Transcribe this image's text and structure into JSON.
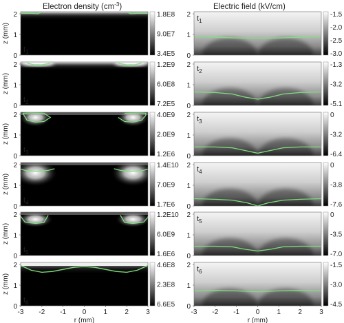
{
  "titles": {
    "left": "Electron density (cm",
    "left_sup": "-3",
    "left_end": ")",
    "right": "Electric field (kV/cm)"
  },
  "axis": {
    "z_label": "z (mm)",
    "r_label": "r (mm)",
    "z_ticks": [
      "0",
      "1",
      "2"
    ],
    "r_ticks": [
      "-3",
      "-2",
      "-1",
      "0",
      "1",
      "2",
      "3"
    ]
  },
  "chart_data": [
    {
      "type": "heatmap",
      "title": "Electron density (cm-3)",
      "xlabel": "r (mm)",
      "ylabel": "z (mm)",
      "xlim": [
        -3,
        3
      ],
      "ylim": [
        0,
        2.1
      ],
      "colormap": "grayscale",
      "contour_color": "#7de07d",
      "panels": [
        {
          "time": "t",
          "sub": "1",
          "colorbar": [
            "1.8E8",
            "9.0E7",
            "3.4E5"
          ],
          "pattern": "top-layer",
          "contours": [
            {
              "r": [
                -3,
                -2.5,
                -2.2,
                -2.0
              ],
              "z": [
                2.02,
                2.02,
                2.0,
                2.08
              ]
            },
            {
              "r": [
                2.0,
                2.2,
                2.5,
                3
              ],
              "z": [
                2.08,
                2.0,
                2.02,
                2.02
              ]
            }
          ]
        },
        {
          "time": "t",
          "sub": "2",
          "colorbar": [
            "1.2E9",
            "6.0E8",
            "7.2E5"
          ],
          "pattern": "top-edges",
          "contours": [
            {
              "r": [
                -2.7,
                -2.4,
                -2.0,
                -1.6
              ],
              "z": [
                2.05,
                1.97,
                1.96,
                2.04
              ]
            },
            {
              "r": [
                1.6,
                2.0,
                2.4,
                2.7
              ],
              "z": [
                2.04,
                1.96,
                1.97,
                2.05
              ]
            }
          ]
        },
        {
          "time": "t",
          "sub": "3",
          "colorbar": [
            "4.0E9",
            "2.0E9",
            "1.2E6"
          ],
          "pattern": "blobs-upper",
          "contours": [
            {
              "r": [
                -2.9,
                -2.7,
                -2.3,
                -1.9,
                -1.6,
                -1.9,
                -2.5,
                -2.9
              ],
              "z": [
                2.05,
                1.72,
                1.62,
                1.65,
                1.85,
                2.05,
                2.07,
                2.05
              ]
            },
            {
              "r": [
                1.6,
                1.9,
                2.3,
                2.7,
                2.9,
                2.9,
                2.5,
                1.9
              ],
              "z": [
                1.85,
                1.65,
                1.62,
                1.72,
                1.95,
                2.05,
                2.07,
                2.05
              ]
            }
          ]
        },
        {
          "time": "t",
          "sub": "4",
          "colorbar": [
            "1.4E10",
            "7.0E9",
            "1.7E6"
          ],
          "pattern": "blobs-large",
          "contours": [
            {
              "r": [
                -3,
                -2.7,
                -2.2,
                -1.7,
                -1.4
              ],
              "z": [
                1.78,
                1.7,
                1.68,
                1.72,
                1.8
              ]
            },
            {
              "r": [
                1.4,
                1.7,
                2.2,
                2.7,
                3
              ],
              "z": [
                1.8,
                1.72,
                1.68,
                1.7,
                1.78
              ]
            }
          ]
        },
        {
          "time": "t",
          "sub": "5",
          "colorbar": [
            "1.2E10",
            "6.0E9",
            "1.6E6"
          ],
          "pattern": "blobs-flat",
          "contours": [
            {
              "r": [
                -3,
                -2.8,
                -2.3,
                -1.9,
                -1.7
              ],
              "z": [
                1.9,
                1.62,
                1.55,
                1.6,
                1.95
              ]
            },
            {
              "r": [
                1.7,
                1.9,
                2.3,
                2.8,
                3,
                3
              ],
              "z": [
                1.95,
                1.6,
                1.55,
                1.62,
                1.85,
                1.9
              ]
            }
          ]
        },
        {
          "time": "t",
          "sub": "6",
          "colorbar": [
            "4.6E8",
            "2.3E8",
            "6.6E5"
          ],
          "pattern": "top-wavy-layer",
          "contours": [
            {
              "r": [
                -3,
                -2.5,
                -2,
                -1.5,
                -1,
                -0.5,
                0,
                0.5,
                1,
                1.5,
                2,
                2.5,
                3
              ],
              "z": [
                1.95,
                1.72,
                1.62,
                1.66,
                1.76,
                1.86,
                1.9,
                1.86,
                1.76,
                1.66,
                1.62,
                1.72,
                1.95
              ]
            }
          ]
        }
      ]
    },
    {
      "type": "heatmap",
      "title": "Electric field (kV/cm)",
      "xlabel": "r (mm)",
      "ylabel": "",
      "xlim": [
        -3,
        3
      ],
      "ylim": [
        0,
        2.1
      ],
      "colormap": "grayscale",
      "contour_color": "#7de07d",
      "panels": [
        {
          "time": "t",
          "sub": "1",
          "colorbar": [
            "-1.5",
            "-2.0",
            "-2.5",
            "-3.0"
          ],
          "contours": [
            {
              "r": [
                -3,
                -2,
                -1,
                0,
                1,
                2,
                3
              ],
              "z": [
                0.88,
                0.86,
                0.83,
                0.82,
                0.83,
                0.86,
                0.88
              ]
            }
          ]
        },
        {
          "time": "t",
          "sub": "2",
          "colorbar": [
            "-1.3",
            "-3.2",
            "-5.1"
          ],
          "contours": [
            {
              "r": [
                -3,
                -2,
                -1.2,
                -0.6,
                0,
                0.6,
                1.2,
                2,
                3
              ],
              "z": [
                0.65,
                0.62,
                0.55,
                0.4,
                0.3,
                0.4,
                0.55,
                0.62,
                0.65
              ]
            }
          ]
        },
        {
          "time": "t",
          "sub": "3",
          "colorbar": [
            "0",
            "-3.2",
            "-6.4"
          ],
          "contours": [
            {
              "r": [
                -3,
                -2,
                -1.2,
                -0.6,
                0,
                0.6,
                1.2,
                2,
                3
              ],
              "z": [
                0.42,
                0.42,
                0.38,
                0.25,
                0.12,
                0.25,
                0.38,
                0.42,
                0.42
              ]
            }
          ]
        },
        {
          "time": "t",
          "sub": "4",
          "colorbar": [
            "0",
            "-3.8",
            "-7.6"
          ],
          "contours": [
            {
              "r": [
                -3,
                -2,
                -1.2,
                -0.5,
                0,
                0.5,
                1.2,
                2,
                3
              ],
              "z": [
                0.35,
                0.32,
                0.28,
                0.15,
                0.0,
                0.15,
                0.28,
                0.32,
                0.35
              ]
            }
          ]
        },
        {
          "time": "t",
          "sub": "5",
          "colorbar": [
            "0",
            "-3.5",
            "-7.0"
          ],
          "contours": [
            {
              "r": [
                -3,
                -2,
                -1.2,
                -0.6,
                0,
                0.6,
                1.2,
                2,
                3
              ],
              "z": [
                0.45,
                0.45,
                0.42,
                0.3,
                0.22,
                0.3,
                0.42,
                0.45,
                0.45
              ]
            }
          ]
        },
        {
          "time": "t",
          "sub": "6",
          "colorbar": [
            "-1.5",
            "-3.0",
            "-4.5"
          ],
          "contours": [
            {
              "r": [
                -3,
                -2,
                -1,
                0,
                1,
                2,
                3
              ],
              "z": [
                0.72,
                0.74,
                0.72,
                0.68,
                0.72,
                0.74,
                0.72
              ]
            }
          ]
        }
      ]
    }
  ]
}
